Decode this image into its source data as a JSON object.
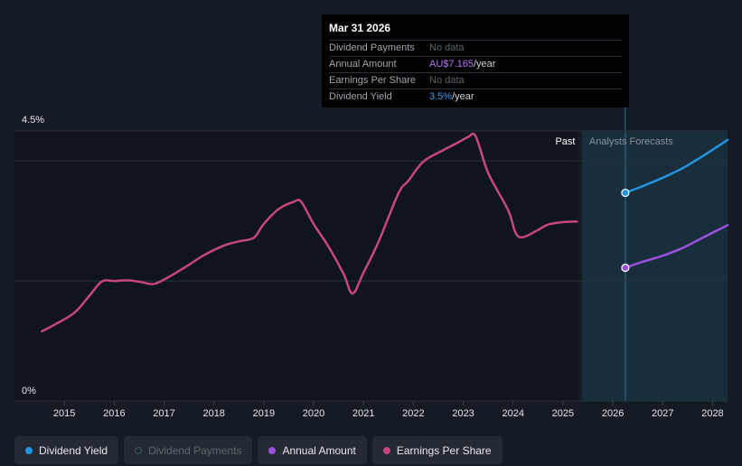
{
  "tooltip": {
    "date": "Mar 31 2026",
    "rows": [
      {
        "label": "Dividend Payments",
        "value": "No data",
        "unit": ""
      },
      {
        "label": "Annual Amount",
        "value": "AU$7.165",
        "unit": "/year"
      },
      {
        "label": "Earnings Per Share",
        "value": "No data",
        "unit": ""
      },
      {
        "label": "Dividend Yield",
        "value": "3.5%",
        "unit": "/year"
      }
    ]
  },
  "colors": {
    "background": "#151b24",
    "dividend_yield": "#2394df",
    "annual_amount": "#9c4fe0",
    "earnings_per_share": "#c8467f",
    "dividend_payments": "#3a4a4f",
    "forecast_band": "#1a3142",
    "past_band": "#10151c"
  },
  "legend": [
    {
      "label": "Dividend Yield",
      "color": "#2394df",
      "active": true,
      "hollow": false
    },
    {
      "label": "Dividend Payments",
      "color": "#3a5a5a",
      "active": false,
      "hollow": true
    },
    {
      "label": "Annual Amount",
      "color": "#9c4fe0",
      "active": true,
      "hollow": false
    },
    {
      "label": "Earnings Per Share",
      "color": "#c8467f",
      "active": true,
      "hollow": false
    }
  ],
  "chart_data": {
    "type": "line",
    "title": "",
    "xlabel": "",
    "ylabel": "",
    "y_tick_labels": [
      "4.5%",
      "0%"
    ],
    "ylim": [
      0,
      4.5
    ],
    "xlim": [
      2014.0,
      2028.3
    ],
    "x_tick_labels": [
      "2015",
      "2016",
      "2017",
      "2018",
      "2019",
      "2020",
      "2021",
      "2022",
      "2023",
      "2024",
      "2025",
      "2026",
      "2027",
      "2028"
    ],
    "x_ticks": [
      2015,
      2016,
      2017,
      2018,
      2019,
      2020,
      2021,
      2022,
      2023,
      2024,
      2025,
      2026,
      2027,
      2028
    ],
    "grid": true,
    "legend_position": "bottom",
    "regions": {
      "past_label": "Past",
      "forecast_label": "Analysts Forecasts",
      "past_end": 2025.3,
      "forecast_start": 2025.38,
      "forecast_marker": 2026.25
    },
    "series": [
      {
        "name": "Earnings Per Share",
        "color": "#c8467f",
        "x": [
          2014.55,
          2014.8,
          2015.2,
          2015.5,
          2015.75,
          2016.0,
          2016.3,
          2016.55,
          2016.8,
          2017.1,
          2017.5,
          2017.8,
          2018.2,
          2018.5,
          2018.8,
          2019.0,
          2019.3,
          2019.6,
          2019.75,
          2020.0,
          2020.3,
          2020.6,
          2020.78,
          2021.0,
          2021.3,
          2021.7,
          2021.9,
          2022.2,
          2022.6,
          2022.9,
          2023.1,
          2023.25,
          2023.5,
          2023.9,
          2024.05,
          2024.2,
          2024.5,
          2024.7,
          2025.0,
          2025.28
        ],
        "values": [
          1.16,
          1.27,
          1.47,
          1.75,
          1.99,
          2.0,
          2.01,
          1.98,
          1.95,
          2.07,
          2.27,
          2.43,
          2.59,
          2.66,
          2.72,
          2.95,
          3.2,
          3.32,
          3.32,
          2.95,
          2.57,
          2.12,
          1.79,
          2.14,
          2.65,
          3.46,
          3.67,
          3.99,
          4.18,
          4.31,
          4.4,
          4.41,
          3.8,
          3.18,
          2.8,
          2.73,
          2.85,
          2.94,
          2.98,
          2.99
        ]
      },
      {
        "name": "Dividend Yield",
        "color": "#2394df",
        "x": [
          2026.25,
          2026.6,
          2027.0,
          2027.4,
          2027.8,
          2028.3
        ],
        "values": [
          3.47,
          3.58,
          3.72,
          3.88,
          4.08,
          4.35
        ]
      },
      {
        "name": "Annual Amount",
        "color": "#9c4fe0",
        "x": [
          2026.25,
          2026.6,
          2027.0,
          2027.4,
          2027.8,
          2028.3
        ],
        "values": [
          2.22,
          2.32,
          2.42,
          2.55,
          2.72,
          2.93
        ]
      }
    ]
  }
}
